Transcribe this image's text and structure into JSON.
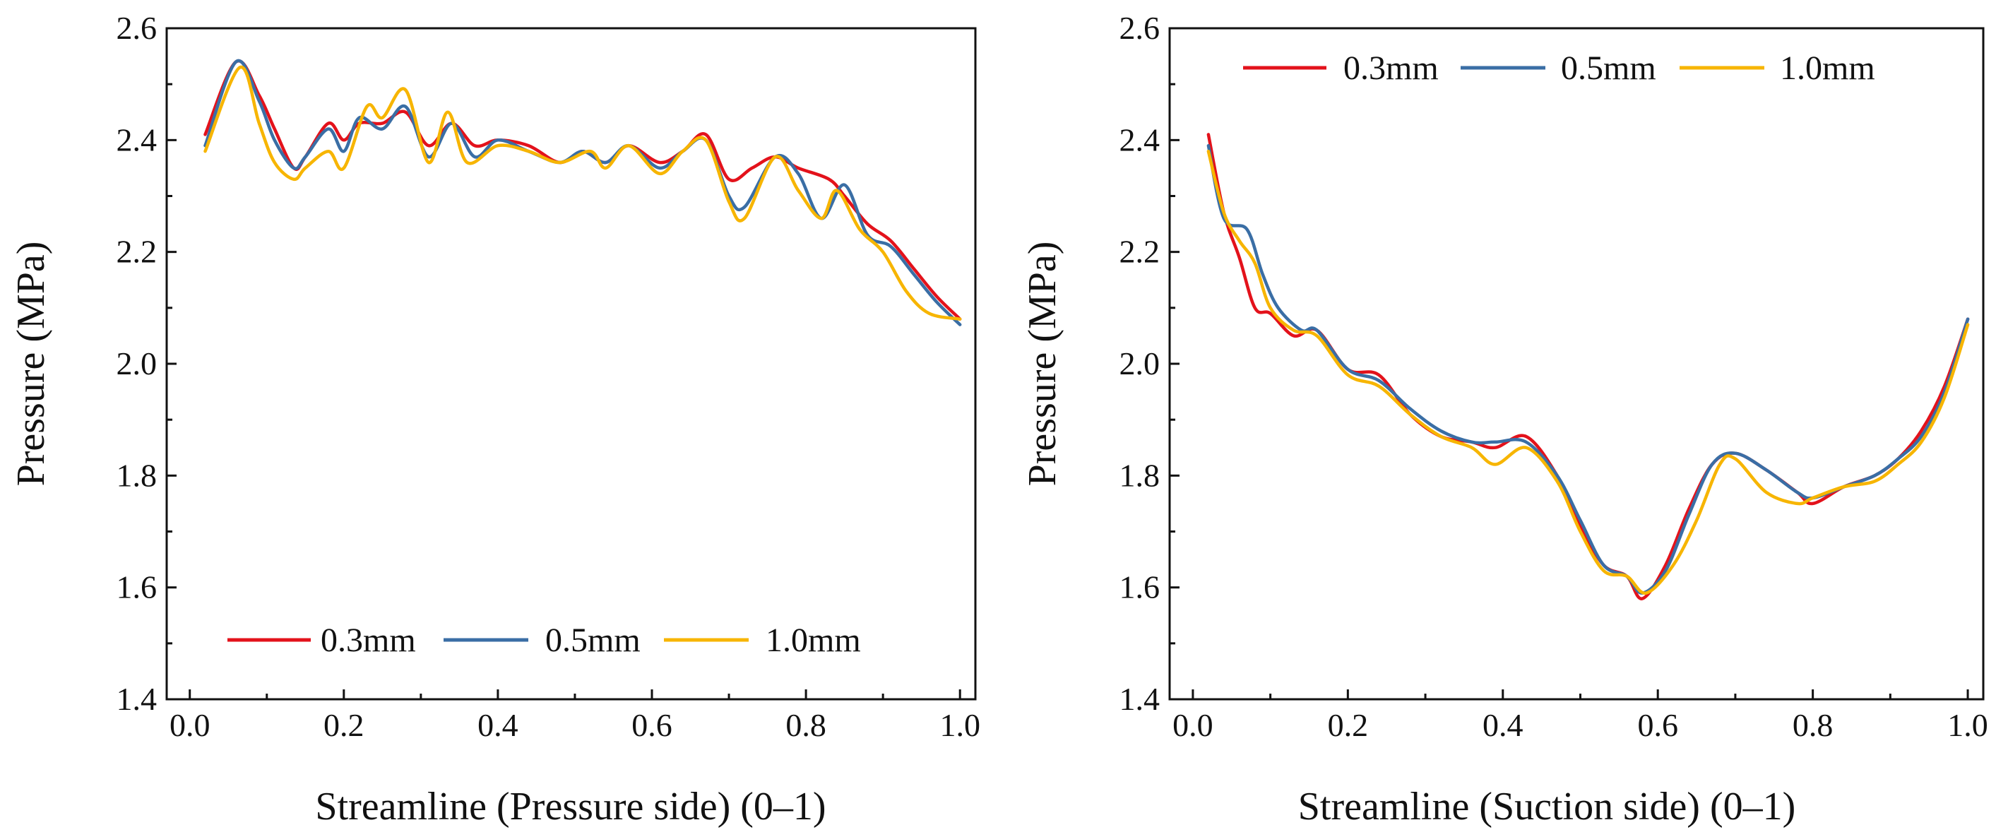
{
  "colors": {
    "0.3mm": "#e3121b",
    "0.5mm": "#3a6ea5",
    "1.0mm": "#f7b500",
    "axis": "#111111"
  },
  "chart_data": [
    {
      "type": "line",
      "title": "",
      "xlabel": "Streamline (Pressure side) (0–1)",
      "ylabel": "Pressure (MPa)",
      "xlim": [
        -0.03,
        1.02
      ],
      "ylim": [
        1.4,
        2.6
      ],
      "xticks": [
        "0.0",
        "0.2",
        "0.4",
        "0.6",
        "0.8",
        "1.0"
      ],
      "yticks": [
        "1.4",
        "1.6",
        "1.8",
        "2.0",
        "2.2",
        "2.4",
        "2.6"
      ],
      "legend_position": "bottom-center",
      "legend_labels": [
        "0.3mm",
        "0.5mm",
        "1.0mm"
      ],
      "series": [
        {
          "name": "0.3mm",
          "x": [
            0.02,
            0.06,
            0.09,
            0.11,
            0.135,
            0.15,
            0.18,
            0.2,
            0.22,
            0.25,
            0.28,
            0.31,
            0.34,
            0.37,
            0.4,
            0.44,
            0.48,
            0.51,
            0.54,
            0.57,
            0.61,
            0.64,
            0.67,
            0.7,
            0.73,
            0.76,
            0.79,
            0.83,
            0.85,
            0.88,
            0.91,
            0.94,
            0.97,
            1.0
          ],
          "y": [
            2.41,
            2.54,
            2.48,
            2.42,
            2.35,
            2.37,
            2.43,
            2.4,
            2.43,
            2.43,
            2.45,
            2.39,
            2.43,
            2.39,
            2.4,
            2.39,
            2.36,
            2.38,
            2.36,
            2.39,
            2.36,
            2.38,
            2.41,
            2.33,
            2.35,
            2.37,
            2.35,
            2.33,
            2.3,
            2.25,
            2.22,
            2.17,
            2.12,
            2.08
          ]
        },
        {
          "name": "0.5mm",
          "x": [
            0.02,
            0.06,
            0.09,
            0.11,
            0.135,
            0.15,
            0.18,
            0.2,
            0.22,
            0.25,
            0.28,
            0.31,
            0.34,
            0.37,
            0.4,
            0.44,
            0.48,
            0.51,
            0.54,
            0.57,
            0.61,
            0.64,
            0.67,
            0.7,
            0.72,
            0.76,
            0.79,
            0.82,
            0.85,
            0.88,
            0.91,
            0.94,
            0.97,
            1.0
          ],
          "y": [
            2.39,
            2.54,
            2.47,
            2.4,
            2.35,
            2.37,
            2.42,
            2.38,
            2.44,
            2.42,
            2.46,
            2.37,
            2.43,
            2.37,
            2.4,
            2.38,
            2.36,
            2.38,
            2.36,
            2.39,
            2.35,
            2.38,
            2.4,
            2.3,
            2.28,
            2.37,
            2.34,
            2.26,
            2.32,
            2.23,
            2.21,
            2.16,
            2.11,
            2.07
          ]
        },
        {
          "name": "1.0mm",
          "x": [
            0.02,
            0.065,
            0.09,
            0.11,
            0.135,
            0.15,
            0.18,
            0.2,
            0.23,
            0.25,
            0.28,
            0.31,
            0.335,
            0.36,
            0.4,
            0.44,
            0.48,
            0.52,
            0.54,
            0.57,
            0.61,
            0.64,
            0.67,
            0.7,
            0.72,
            0.76,
            0.79,
            0.82,
            0.84,
            0.87,
            0.9,
            0.93,
            0.96,
            1.0
          ],
          "y": [
            2.38,
            2.53,
            2.43,
            2.36,
            2.33,
            2.35,
            2.38,
            2.35,
            2.46,
            2.44,
            2.49,
            2.36,
            2.45,
            2.36,
            2.39,
            2.38,
            2.36,
            2.38,
            2.35,
            2.39,
            2.34,
            2.38,
            2.4,
            2.29,
            2.26,
            2.37,
            2.31,
            2.26,
            2.31,
            2.24,
            2.2,
            2.13,
            2.09,
            2.08
          ]
        }
      ]
    },
    {
      "type": "line",
      "title": "",
      "xlabel": "Streamline (Suction side) (0–1)",
      "ylabel": "Pressure (MPa)",
      "xlim": [
        -0.03,
        1.02
      ],
      "ylim": [
        1.4,
        2.6
      ],
      "xticks": [
        "0.0",
        "0.2",
        "0.4",
        "0.6",
        "0.8",
        "1.0"
      ],
      "yticks": [
        "1.4",
        "1.6",
        "1.8",
        "2.0",
        "2.2",
        "2.4",
        "2.6"
      ],
      "legend_position": "top-center",
      "legend_labels": [
        "0.3mm",
        "0.5mm",
        "1.0mm"
      ],
      "series": [
        {
          "name": "0.3mm",
          "x": [
            0.02,
            0.04,
            0.06,
            0.08,
            0.1,
            0.13,
            0.16,
            0.2,
            0.24,
            0.28,
            0.32,
            0.36,
            0.39,
            0.43,
            0.47,
            0.5,
            0.53,
            0.56,
            0.58,
            0.61,
            0.64,
            0.67,
            0.7,
            0.74,
            0.78,
            0.8,
            0.84,
            0.88,
            0.91,
            0.94,
            0.97,
            1.0
          ],
          "y": [
            2.41,
            2.27,
            2.19,
            2.1,
            2.09,
            2.05,
            2.06,
            1.99,
            1.98,
            1.91,
            1.87,
            1.86,
            1.85,
            1.87,
            1.8,
            1.71,
            1.64,
            1.62,
            1.58,
            1.64,
            1.74,
            1.82,
            1.84,
            1.81,
            1.77,
            1.75,
            1.78,
            1.8,
            1.83,
            1.88,
            1.96,
            2.08
          ]
        },
        {
          "name": "0.5mm",
          "x": [
            0.02,
            0.04,
            0.07,
            0.09,
            0.11,
            0.14,
            0.16,
            0.2,
            0.24,
            0.28,
            0.32,
            0.36,
            0.39,
            0.43,
            0.47,
            0.5,
            0.53,
            0.56,
            0.58,
            0.61,
            0.64,
            0.67,
            0.7,
            0.74,
            0.78,
            0.8,
            0.84,
            0.88,
            0.91,
            0.94,
            0.97,
            1.0
          ],
          "y": [
            2.39,
            2.26,
            2.24,
            2.16,
            2.1,
            2.06,
            2.06,
            1.99,
            1.97,
            1.92,
            1.88,
            1.86,
            1.86,
            1.86,
            1.8,
            1.72,
            1.64,
            1.62,
            1.59,
            1.63,
            1.73,
            1.82,
            1.84,
            1.81,
            1.77,
            1.76,
            1.78,
            1.8,
            1.83,
            1.87,
            1.95,
            2.08
          ]
        },
        {
          "name": "1.0mm",
          "x": [
            0.02,
            0.04,
            0.06,
            0.08,
            0.1,
            0.13,
            0.16,
            0.2,
            0.24,
            0.28,
            0.32,
            0.36,
            0.39,
            0.43,
            0.47,
            0.5,
            0.53,
            0.56,
            0.585,
            0.62,
            0.65,
            0.68,
            0.7,
            0.74,
            0.78,
            0.8,
            0.84,
            0.88,
            0.91,
            0.94,
            0.97,
            1.0
          ],
          "y": [
            2.38,
            2.27,
            2.22,
            2.18,
            2.1,
            2.06,
            2.05,
            1.98,
            1.96,
            1.91,
            1.87,
            1.85,
            1.82,
            1.85,
            1.79,
            1.7,
            1.63,
            1.62,
            1.59,
            1.64,
            1.72,
            1.82,
            1.83,
            1.77,
            1.75,
            1.76,
            1.78,
            1.79,
            1.82,
            1.86,
            1.94,
            2.07
          ]
        }
      ]
    }
  ]
}
